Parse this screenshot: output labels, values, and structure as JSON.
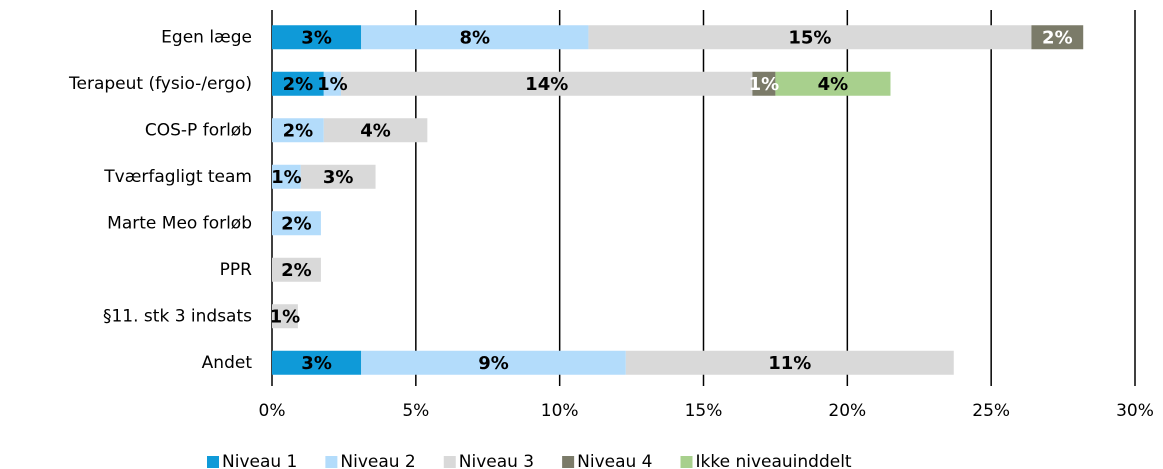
{
  "chart_data": {
    "type": "stacked_bar_horizontal",
    "categories": [
      "Egen læge",
      "Terapeut (fysio-/ergo)",
      "COS-P forløb",
      "Tværfagligt team",
      "Marte Meo forløb",
      "PPR",
      "§11. stk 3 indsats",
      "Andet"
    ],
    "series": [
      {
        "name": "Niveau 1",
        "color": "#0f9ad8",
        "label_color": "#000000",
        "values": [
          3.1,
          1.8,
          null,
          null,
          null,
          null,
          null,
          3.1
        ],
        "value_labels": [
          "3%",
          "2%",
          null,
          null,
          null,
          null,
          null,
          "3%"
        ]
      },
      {
        "name": "Niveau 2",
        "color": "#b3dcfb",
        "label_color": "#000000",
        "values": [
          7.9,
          0.6,
          1.8,
          1.0,
          1.7,
          null,
          null,
          9.2
        ],
        "value_labels": [
          "8%",
          "1%",
          "2%",
          "1%",
          "2%",
          null,
          null,
          "9%"
        ]
      },
      {
        "name": "Niveau 3",
        "color": "#d9d9d9",
        "label_color": "#000000",
        "values": [
          15.4,
          14.3,
          3.6,
          2.6,
          null,
          1.7,
          0.9,
          11.4
        ],
        "value_labels": [
          "15%",
          "14%",
          "4%",
          "3%",
          null,
          "2%",
          "1%",
          "11%"
        ]
      },
      {
        "name": "Niveau 4",
        "color": "#7b7b69",
        "label_color": "#ffffff",
        "values": [
          1.8,
          0.8,
          null,
          null,
          null,
          null,
          null,
          null
        ],
        "value_labels": [
          "2%",
          "1%",
          null,
          null,
          null,
          null,
          null,
          null
        ]
      },
      {
        "name": "Ikke niveauinddelt",
        "color": "#a8d08d",
        "label_color": "#000000",
        "values": [
          null,
          4.0,
          null,
          null,
          null,
          null,
          null,
          null
        ],
        "value_labels": [
          null,
          "4%",
          null,
          null,
          null,
          null,
          null,
          null
        ]
      }
    ],
    "xlim": [
      0,
      30
    ],
    "xticks": [
      {
        "value": 0,
        "label": "0%"
      },
      {
        "value": 5,
        "label": "5%"
      },
      {
        "value": 10,
        "label": "10%"
      },
      {
        "value": 15,
        "label": "15%"
      },
      {
        "value": 20,
        "label": "20%"
      },
      {
        "value": 25,
        "label": "25%"
      },
      {
        "value": 30,
        "label": "30%"
      }
    ],
    "grid": true,
    "legend": "bottom"
  }
}
